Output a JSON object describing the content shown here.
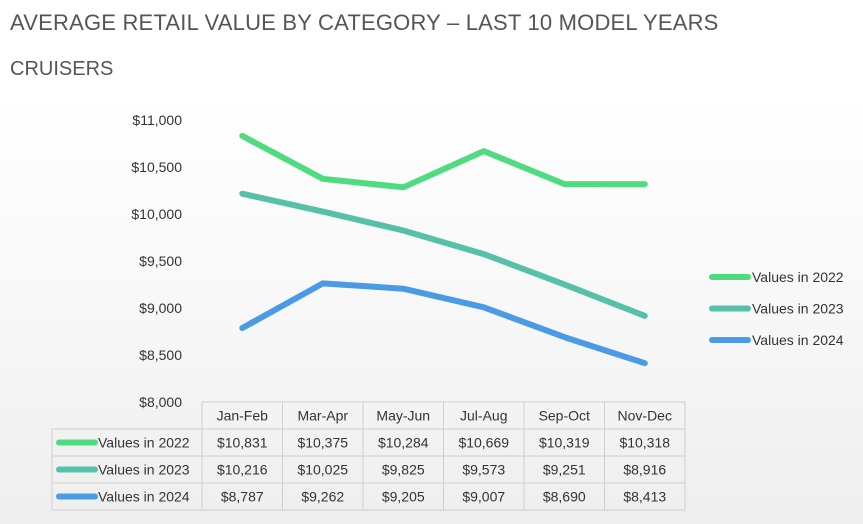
{
  "header": {
    "title": "AVERAGE RETAIL VALUE BY CATEGORY – LAST 10 MODEL YEARS",
    "subtitle": "CRUISERS"
  },
  "chart_data": {
    "type": "line",
    "title": "AVERAGE RETAIL VALUE BY CATEGORY – LAST 10 MODEL YEARS",
    "subtitle": "CRUISERS",
    "categories": [
      "Jan-Feb",
      "Mar-Apr",
      "May-Jun",
      "Jul-Aug",
      "Sep-Oct",
      "Nov-Dec"
    ],
    "ylim": [
      8000,
      11000
    ],
    "yticks": [
      8000,
      8500,
      9000,
      9500,
      10000,
      10500,
      11000
    ],
    "ytick_labels": [
      "$8,000",
      "$8,500",
      "$9,000",
      "$9,500",
      "$10,000",
      "$10,500",
      "$11,000"
    ],
    "grid": false,
    "legend_position": "right",
    "has_data_table": true,
    "series": [
      {
        "name": "Values in 2022",
        "color": "#4fdc80",
        "values": [
          10831,
          10375,
          10284,
          10669,
          10319,
          10318
        ],
        "table_labels": [
          "$10,831",
          "$10,375",
          "$10,284",
          "$10,669",
          "$10,319",
          "$10,318"
        ]
      },
      {
        "name": "Values in 2023",
        "color": "#56c0a8",
        "values": [
          10216,
          10025,
          9825,
          9573,
          9251,
          8916
        ],
        "table_labels": [
          "$10,216",
          "$10,025",
          "$9,825",
          "$9,573",
          "$9,251",
          "$8,916"
        ]
      },
      {
        "name": "Values in 2024",
        "color": "#4a9ae6",
        "values": [
          8787,
          9262,
          9205,
          9007,
          8690,
          8413
        ],
        "table_labels": [
          "$8,787",
          "$9,262",
          "$9,205",
          "$9,007",
          "$8,690",
          "$8,413"
        ]
      }
    ]
  }
}
